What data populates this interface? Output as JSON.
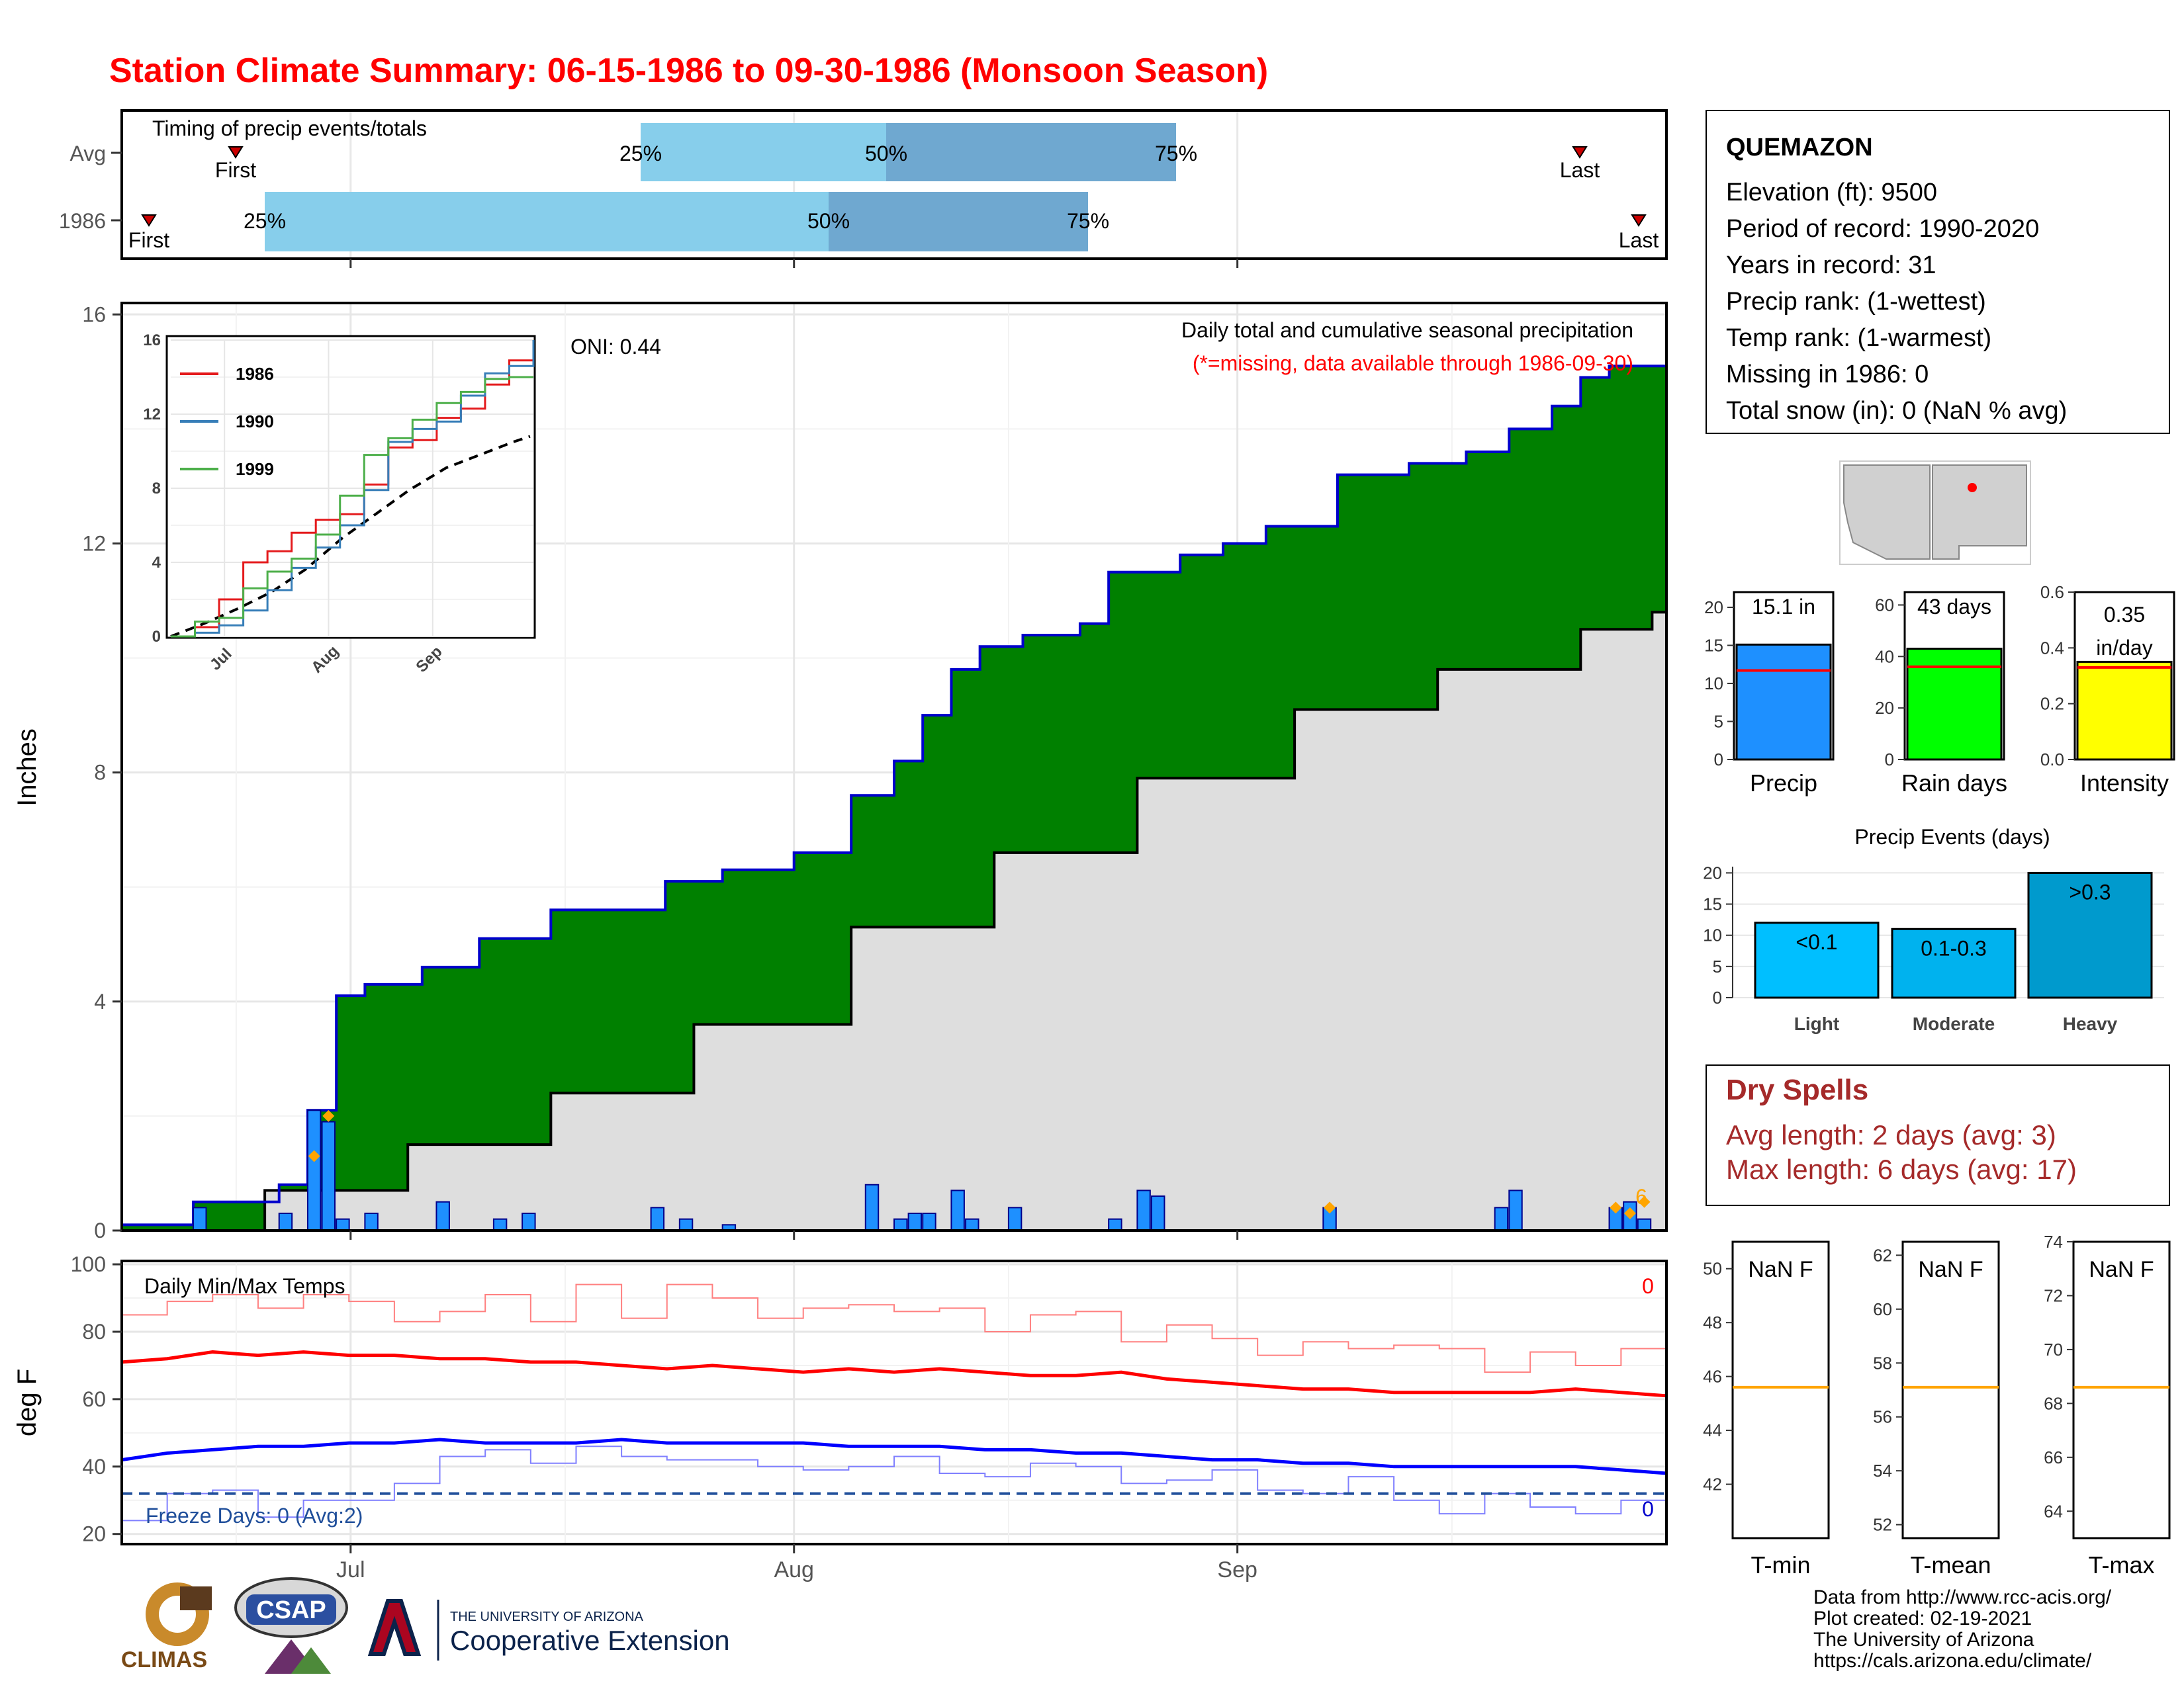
{
  "title": "Station Climate Summary: 06-15-1986 to 09-30-1986 (Monsoon Season)",
  "colors": {
    "title": "#ff0000",
    "precip_fill": "#008000",
    "precip_line": "#0000cc",
    "normal_fill": "#dedede",
    "daily_bar": "#1e90ff",
    "quartile_light": "#87ceeb",
    "quartile_dark": "#6fa8d0",
    "tmax_line": "#ff0000",
    "tmin_line": "#0000ff",
    "dry_spell_text": "#a52a2a",
    "event_bar": "#00b2ee"
  },
  "timing_panel": {
    "title": "Timing of precip events/totals",
    "row_labels": [
      "Avg",
      "1986"
    ],
    "avg": {
      "first_label": "First",
      "last_label": "Last",
      "q25": "25%",
      "q50": "50%",
      "q75": "75%"
    },
    "y1986": {
      "first_label": "First",
      "last_label": "Last",
      "q25": "25%",
      "q50": "50%",
      "q75": "75%"
    }
  },
  "precip_panel": {
    "ylabel": "Inches",
    "yticks": [
      "0",
      "4",
      "8",
      "12",
      "16"
    ],
    "annotation_title": "Daily total and cumulative seasonal precipitation",
    "annotation_missing": "(*=missing, data available through 1986-09-30)",
    "oni": "ONI: 0.44",
    "count_label": "6",
    "inset": {
      "yticks": [
        "0",
        "4",
        "8",
        "12",
        "16"
      ],
      "xticks": [
        "Jul",
        "Aug",
        "Sep"
      ],
      "legend": [
        "1986",
        "1990",
        "1999"
      ]
    }
  },
  "temp_panel": {
    "ylabel": "deg F",
    "title": "Daily Min/Max Temps",
    "yticks": [
      "20",
      "40",
      "60",
      "80",
      "100"
    ],
    "freeze_label": "Freeze Days: 0 (Avg:2)",
    "hot_count": "0",
    "freeze_count": "0"
  },
  "xaxis": {
    "ticks": [
      "Jul",
      "Aug",
      "Sep"
    ]
  },
  "station": {
    "name": "QUEMAZON",
    "lines": [
      "Elevation (ft): 9500",
      "Period of record: 1990-2020",
      "Years in record: 31",
      "Precip rank:  (1-wettest)",
      "Temp rank:  (1-warmest)",
      "Missing in 1986: 0",
      "Total snow (in): 0 (NaN % avg)"
    ]
  },
  "summary_bars": [
    {
      "label": "Precip",
      "value_label": "15.1 in",
      "value": 15.1,
      "avg": 11.7,
      "yticks": [
        "0",
        "5",
        "10",
        "15",
        "20"
      ],
      "ymax": 22
    },
    {
      "label": "Rain days",
      "value_label": "43 days",
      "value": 43,
      "avg": 36,
      "yticks": [
        "0",
        "20",
        "40",
        "60"
      ],
      "ymax": 65
    },
    {
      "label": "Intensity",
      "value_label": "0.35 in/day",
      "value": 0.35,
      "avg": 0.33,
      "yticks": [
        "0.0",
        "0.2",
        "0.4",
        "0.6"
      ],
      "ymax": 0.6
    }
  ],
  "events": {
    "title": "Precip Events (days)",
    "yticks": [
      "0",
      "5",
      "10",
      "15",
      "20"
    ],
    "categories": [
      "Light",
      "Moderate",
      "Heavy"
    ],
    "bar_labels": [
      "<0.1",
      "0.1-0.3",
      ">0.3"
    ],
    "values": [
      12,
      11,
      20
    ]
  },
  "dry_spells": {
    "title": "Dry Spells",
    "avg_line": "Avg length: 2 days (avg: 3)",
    "max_line": "Max length: 6 days (avg: 17)"
  },
  "temp_bars": [
    {
      "label": "T-min",
      "value_label": "NaN F",
      "avg": 45.6,
      "ymin": 40,
      "ymax": 51,
      "ticks": [
        "42",
        "44",
        "46",
        "48",
        "50"
      ]
    },
    {
      "label": "T-mean",
      "value_label": "NaN F",
      "avg": 57.1,
      "ymin": 51.5,
      "ymax": 62.5,
      "ticks": [
        "52",
        "54",
        "56",
        "58",
        "60",
        "62"
      ]
    },
    {
      "label": "T-max",
      "value_label": "NaN F",
      "avg": 68.6,
      "ymin": 63,
      "ymax": 74,
      "ticks": [
        "64",
        "66",
        "68",
        "70",
        "72",
        "74"
      ]
    }
  ],
  "logos": {
    "climas": "CLIMAS",
    "csap": "CSAP",
    "ua_small": "THE UNIVERSITY OF ARIZONA",
    "ua_big": "Cooperative Extension"
  },
  "footer": [
    "Data from http://www.rcc-acis.org/",
    "Plot created: 02-19-2021",
    "The University of Arizona",
    "https://cals.arizona.edu/climate/"
  ],
  "chart_data": [
    {
      "type": "area",
      "title": "Daily total and cumulative seasonal precipitation",
      "ylabel": "Inches",
      "ylim": [
        0,
        16.2
      ],
      "x_range": [
        "1986-06-15",
        "1986-09-30"
      ],
      "series": [
        {
          "name": "Cumulative 1986",
          "x": [
            "06-15",
            "06-20",
            "06-26",
            "06-28",
            "06-30",
            "07-02",
            "07-06",
            "07-10",
            "07-15",
            "07-17",
            "07-23",
            "07-27",
            "08-01",
            "08-05",
            "08-08",
            "08-10",
            "08-12",
            "08-14",
            "08-17",
            "08-21",
            "08-23",
            "08-28",
            "08-31",
            "09-03",
            "09-08",
            "09-13",
            "09-17",
            "09-20",
            "09-23",
            "09-25",
            "09-27",
            "09-30"
          ],
          "values": [
            0.1,
            0.5,
            0.8,
            2.1,
            4.1,
            4.3,
            4.6,
            5.1,
            5.6,
            5.6,
            6.1,
            6.3,
            6.6,
            7.6,
            8.2,
            9.0,
            9.8,
            10.2,
            10.4,
            10.6,
            11.5,
            11.8,
            12.0,
            12.3,
            13.2,
            13.4,
            13.6,
            14.0,
            14.4,
            14.9,
            15.1,
            15.1
          ]
        },
        {
          "name": "Cumulative normal",
          "x": [
            "06-15",
            "06-25",
            "07-05",
            "07-15",
            "07-25",
            "08-05",
            "08-15",
            "08-25",
            "09-05",
            "09-15",
            "09-25",
            "09-30"
          ],
          "values": [
            0.0,
            0.7,
            1.5,
            2.4,
            3.6,
            5.3,
            6.6,
            7.9,
            9.1,
            9.8,
            10.5,
            10.8
          ]
        },
        {
          "name": "Daily precip",
          "x": [
            "06-20",
            "06-26",
            "06-28",
            "06-29",
            "06-30",
            "07-02",
            "07-07",
            "07-11",
            "07-13",
            "07-22",
            "07-24",
            "07-27",
            "08-06",
            "08-08",
            "08-09",
            "08-10",
            "08-12",
            "08-13",
            "08-16",
            "08-23",
            "08-25",
            "08-26",
            "09-07",
            "09-19",
            "09-20",
            "09-27",
            "09-28",
            "09-29"
          ],
          "values": [
            0.4,
            0.3,
            2.1,
            1.9,
            0.2,
            0.3,
            0.5,
            0.2,
            0.3,
            0.4,
            0.2,
            0.1,
            0.8,
            0.2,
            0.3,
            0.3,
            0.7,
            0.2,
            0.4,
            0.2,
            0.7,
            0.6,
            0.4,
            0.4,
            0.7,
            0.4,
            0.5,
            0.2
          ]
        }
      ]
    },
    {
      "type": "line",
      "title": "Daily Min/Max Temps",
      "ylabel": "deg F",
      "ylim": [
        17,
        101
      ],
      "x_range": [
        "1986-06-15",
        "1986-09-30"
      ],
      "series": [
        {
          "name": "Tmax avg",
          "values": [
            71,
            72,
            74,
            73,
            74,
            73,
            73,
            72,
            72,
            71,
            71,
            70,
            69,
            70,
            69,
            68,
            69,
            68,
            69,
            68,
            67,
            67,
            68,
            66,
            65,
            64,
            63,
            63,
            62,
            62,
            62,
            62,
            63,
            62,
            61
          ]
        },
        {
          "name": "Tmin avg",
          "values": [
            42,
            44,
            45,
            46,
            46,
            47,
            47,
            48,
            47,
            47,
            47,
            48,
            47,
            47,
            47,
            47,
            46,
            46,
            46,
            45,
            45,
            44,
            44,
            43,
            42,
            42,
            41,
            41,
            40,
            40,
            40,
            40,
            40,
            39,
            38
          ]
        },
        {
          "name": "Tmax 1986",
          "values": [
            85,
            89,
            91,
            87,
            91,
            89,
            83,
            86,
            91,
            83,
            94,
            84,
            94,
            90,
            84,
            87,
            88,
            86,
            87,
            80,
            85,
            86,
            77,
            82,
            78,
            73,
            77,
            75,
            76,
            75,
            68,
            74,
            70,
            75,
            72
          ]
        },
        {
          "name": "Tmin 1986",
          "values": [
            24,
            32,
            33,
            25,
            30,
            30,
            35,
            43,
            45,
            41,
            46,
            43,
            42,
            42,
            40,
            39,
            40,
            43,
            38,
            37,
            41,
            40,
            35,
            36,
            39,
            33,
            32,
            37,
            30,
            26,
            32,
            28,
            26,
            30,
            32
          ]
        }
      ]
    }
  ]
}
